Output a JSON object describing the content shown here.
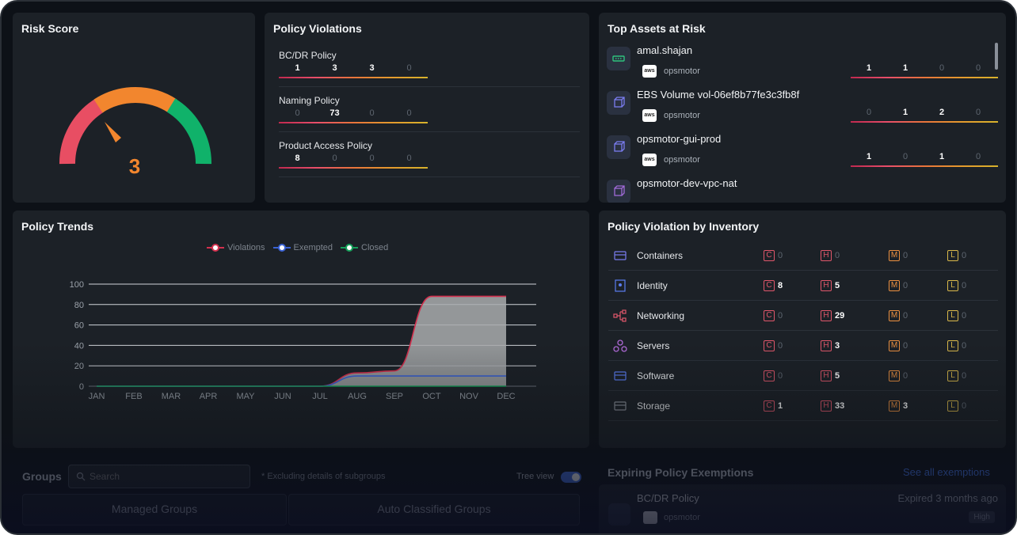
{
  "risk": {
    "title": "Risk Score",
    "score": "3",
    "gauge_colors": [
      "#e84e63",
      "#f2862e",
      "#10b26a"
    ]
  },
  "violations": {
    "title": "Policy Violations",
    "policies": [
      {
        "name": "BC/DR Policy",
        "counts": [
          "1",
          "3",
          "3",
          "0"
        ]
      },
      {
        "name": "Naming Policy",
        "counts": [
          "0",
          "73",
          "0",
          "0"
        ]
      },
      {
        "name": "Product Access Policy",
        "counts": [
          "8",
          "0",
          "0",
          "0"
        ]
      }
    ]
  },
  "assets": {
    "title": "Top Assets at Risk",
    "items": [
      {
        "name": "amal.shajan",
        "account": "opsmotor",
        "icon": "user-icon",
        "counts": [
          "1",
          "1",
          "0",
          "0"
        ]
      },
      {
        "name": "EBS Volume vol-06ef8b77fe3c3fb8f",
        "account": "opsmotor",
        "icon": "cube-icon",
        "counts": [
          "0",
          "1",
          "2",
          "0"
        ]
      },
      {
        "name": "opsmotor-gui-prod",
        "account": "opsmotor",
        "icon": "cube-icon",
        "counts": [
          "1",
          "0",
          "1",
          "0"
        ]
      },
      {
        "name": "opsmotor-dev-vpc-nat",
        "account": "",
        "icon": "network-icon",
        "counts": []
      }
    ],
    "aws_label": "aws"
  },
  "trends": {
    "title": "Policy Trends",
    "legend": [
      "Violations",
      "Exempted",
      "Closed"
    ]
  },
  "chart_data": {
    "type": "area",
    "title": "Policy Trends",
    "x": [
      "JAN",
      "FEB",
      "MAR",
      "APR",
      "MAY",
      "JUN",
      "JUL",
      "AUG",
      "SEP",
      "OCT",
      "NOV",
      "DEC"
    ],
    "ylim": [
      0,
      100
    ],
    "yticks": [
      "0",
      "20",
      "40",
      "60",
      "80",
      "100"
    ],
    "series": [
      {
        "name": "Violations",
        "color": "#d3304e",
        "values": [
          0,
          0,
          0,
          0,
          0,
          0,
          0,
          13,
          15,
          88,
          88,
          88
        ]
      },
      {
        "name": "Exempted",
        "color": "#3a62d4",
        "values": [
          0,
          0,
          0,
          0,
          0,
          0,
          0,
          10,
          10,
          10,
          10,
          10
        ]
      },
      {
        "name": "Closed",
        "color": "#15a05a",
        "values": [
          0,
          0,
          0,
          0,
          0,
          0,
          0,
          0,
          0,
          0,
          0,
          0
        ]
      }
    ],
    "grid": true,
    "legend_position": "top"
  },
  "inventory": {
    "title": "Policy Violation by Inventory",
    "labels": {
      "c": "C",
      "h": "H",
      "m": "M",
      "l": "L"
    },
    "rows": [
      {
        "name": "Containers",
        "icon": "containers-icon",
        "c": "0",
        "h": "0",
        "m": "0",
        "l": "0"
      },
      {
        "name": "Identity",
        "icon": "identity-icon",
        "c": "8",
        "h": "5",
        "m": "0",
        "l": "0"
      },
      {
        "name": "Networking",
        "icon": "networking-icon",
        "c": "0",
        "h": "29",
        "m": "0",
        "l": "0"
      },
      {
        "name": "Servers",
        "icon": "servers-icon",
        "c": "0",
        "h": "3",
        "m": "0",
        "l": "0"
      },
      {
        "name": "Software",
        "icon": "software-icon",
        "c": "0",
        "h": "5",
        "m": "0",
        "l": "0"
      },
      {
        "name": "Storage",
        "icon": "storage-icon",
        "c": "1",
        "h": "33",
        "m": "3",
        "l": "0"
      }
    ]
  },
  "groups": {
    "title": "Groups",
    "search_placeholder": "Search",
    "note": "* Excluding details of subgroups",
    "tree_view_label": "Tree view",
    "tabs": [
      "Managed Groups",
      "Auto Classified Groups"
    ]
  },
  "exemptions": {
    "title": "Expiring Policy Exemptions",
    "link": "See all exemptions",
    "item": {
      "name": "BC/DR Policy",
      "time": "Expired 3 months ago",
      "account": "opsmotor",
      "badge": "High"
    }
  }
}
